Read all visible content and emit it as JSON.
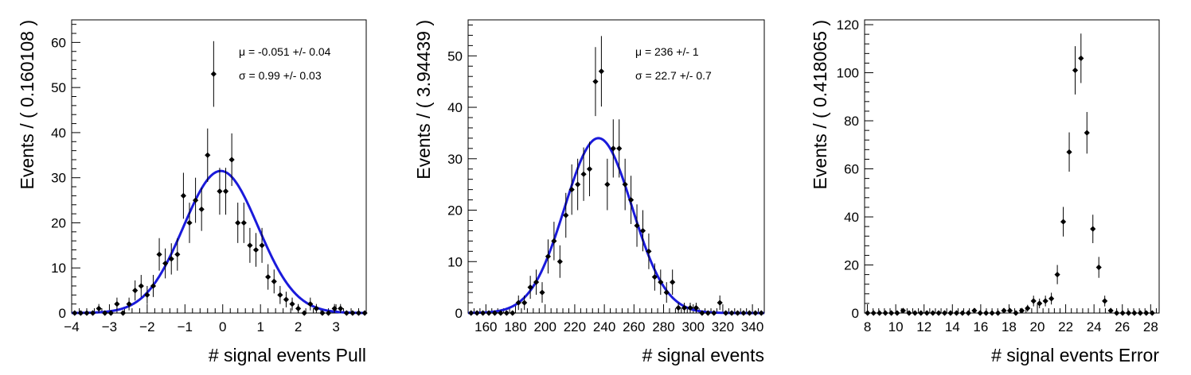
{
  "colors": {
    "fit": "#1a1adb",
    "points": "#000000",
    "frame": "#000000"
  },
  "chart_data": [
    {
      "type": "scatter",
      "xlabel": "# signal events Pull",
      "ylabel": "Events / ( 0.160108 )",
      "xlim": [
        -4,
        3.8
      ],
      "ylim": [
        0,
        65
      ],
      "xticks": [
        -4,
        -3,
        -2,
        -1,
        0,
        1,
        2,
        3
      ],
      "yticks": [
        0,
        10,
        20,
        30,
        40,
        50,
        60
      ],
      "annotations": [
        "μ = -0.051 +/- 0.04",
        "σ =  0.99 +/- 0.03"
      ],
      "fit": {
        "type": "gaussian",
        "mean": -0.051,
        "sigma": 0.99,
        "peak": 31.5
      },
      "series": [
        {
          "x": [
            -3.92,
            -3.76,
            -3.6,
            -3.44,
            -3.28,
            -3.12,
            -2.96,
            -2.8,
            -2.64,
            -2.48,
            -2.32,
            -2.16,
            -2.0,
            -1.84,
            -1.68,
            -1.52,
            -1.36,
            -1.2,
            -1.04,
            -0.88,
            -0.72,
            -0.56,
            -0.4,
            -0.24,
            -0.08,
            0.08,
            0.24,
            0.4,
            0.56,
            0.72,
            0.88,
            1.04,
            1.2,
            1.36,
            1.52,
            1.68,
            1.84,
            2.0,
            2.16,
            2.32,
            2.48,
            2.64,
            2.8,
            2.96,
            3.12,
            3.28,
            3.44,
            3.6,
            3.76
          ],
          "y": [
            0,
            0,
            0,
            0,
            1,
            0,
            0,
            2,
            0,
            2,
            5,
            6,
            4,
            6,
            13,
            11,
            12,
            13,
            26,
            20,
            25,
            23,
            35,
            53,
            27,
            27,
            34,
            20,
            20,
            15,
            14,
            15,
            8,
            7,
            4,
            3,
            2,
            1,
            0,
            2,
            1,
            0,
            0,
            1,
            1,
            0,
            0,
            0,
            0
          ]
        }
      ]
    },
    {
      "type": "scatter",
      "xlabel": "# signal events",
      "ylabel": "Events / ( 3.94439 )",
      "xlim": [
        148,
        348
      ],
      "ylim": [
        0,
        57
      ],
      "xticks": [
        160,
        180,
        200,
        220,
        240,
        260,
        280,
        300,
        320,
        340
      ],
      "yticks": [
        0,
        10,
        20,
        30,
        40,
        50
      ],
      "annotations": [
        "μ =  236 +/- 1",
        "σ =  22.7 +/- 0.7"
      ],
      "fit": {
        "type": "gaussian",
        "mean": 236,
        "sigma": 22.7,
        "peak": 34
      },
      "series": [
        {
          "x": [
            150,
            154,
            158,
            162,
            166,
            170,
            174,
            178,
            182,
            186,
            190,
            194,
            198,
            202,
            206,
            210,
            214,
            218,
            222,
            226,
            230,
            234,
            238,
            242,
            246,
            250,
            254,
            258,
            262,
            266,
            270,
            274,
            278,
            282,
            286,
            290,
            294,
            298,
            302,
            306,
            310,
            314,
            318,
            322,
            326,
            330,
            334,
            338,
            342,
            346
          ],
          "y": [
            0,
            0,
            0,
            0,
            0,
            0,
            0,
            0,
            2,
            2,
            5,
            6,
            4,
            11,
            14,
            10,
            19,
            24,
            25,
            27,
            28,
            45,
            47,
            25,
            32,
            32,
            25,
            22,
            17,
            16,
            12,
            7,
            6,
            4,
            6,
            1,
            1,
            1,
            1,
            0,
            0,
            0,
            2,
            0,
            0,
            0,
            0,
            0,
            0,
            0
          ]
        }
      ]
    },
    {
      "type": "scatter",
      "xlabel": "# signal events Error",
      "ylabel": "Events / ( 0.418065 )",
      "xlim": [
        7.8,
        28.6
      ],
      "ylim": [
        0,
        122
      ],
      "xticks": [
        8,
        10,
        12,
        14,
        16,
        18,
        20,
        22,
        24,
        26,
        28
      ],
      "yticks": [
        0,
        20,
        40,
        60,
        80,
        100,
        120
      ],
      "annotations": [],
      "series": [
        {
          "x": [
            8.01,
            8.43,
            8.85,
            9.27,
            9.69,
            10.1,
            10.52,
            10.94,
            11.36,
            11.78,
            12.2,
            12.62,
            13.03,
            13.45,
            13.87,
            14.29,
            14.71,
            15.13,
            15.55,
            15.96,
            16.38,
            16.8,
            17.22,
            17.64,
            18.06,
            18.48,
            18.9,
            19.31,
            19.73,
            20.15,
            20.57,
            20.99,
            21.41,
            21.83,
            22.25,
            22.67,
            23.08,
            23.5,
            23.92,
            24.34,
            24.76,
            25.18,
            25.6,
            26.02,
            26.44,
            26.85,
            27.27,
            27.69,
            28.11
          ],
          "y": [
            0,
            0,
            0,
            0,
            0,
            0,
            1,
            0,
            0,
            0,
            0,
            0,
            0,
            0,
            0,
            0,
            0,
            0,
            1,
            0,
            0,
            0,
            0,
            1,
            1,
            0,
            1,
            2,
            5,
            4,
            5,
            6,
            16,
            38,
            67,
            101,
            106,
            75,
            35,
            19,
            5,
            1,
            0,
            0,
            0,
            0,
            0,
            0,
            0
          ]
        }
      ]
    }
  ]
}
